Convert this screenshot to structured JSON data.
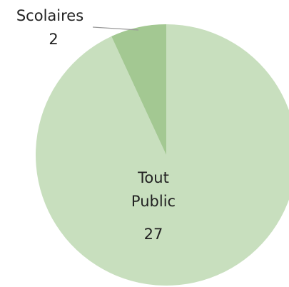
{
  "chart_data": {
    "type": "pie",
    "categories": [
      "Tout Public",
      "Scolaires"
    ],
    "values": [
      27,
      2
    ],
    "colors": [
      "#c8dfbe",
      "#a3c892"
    ]
  }
}
